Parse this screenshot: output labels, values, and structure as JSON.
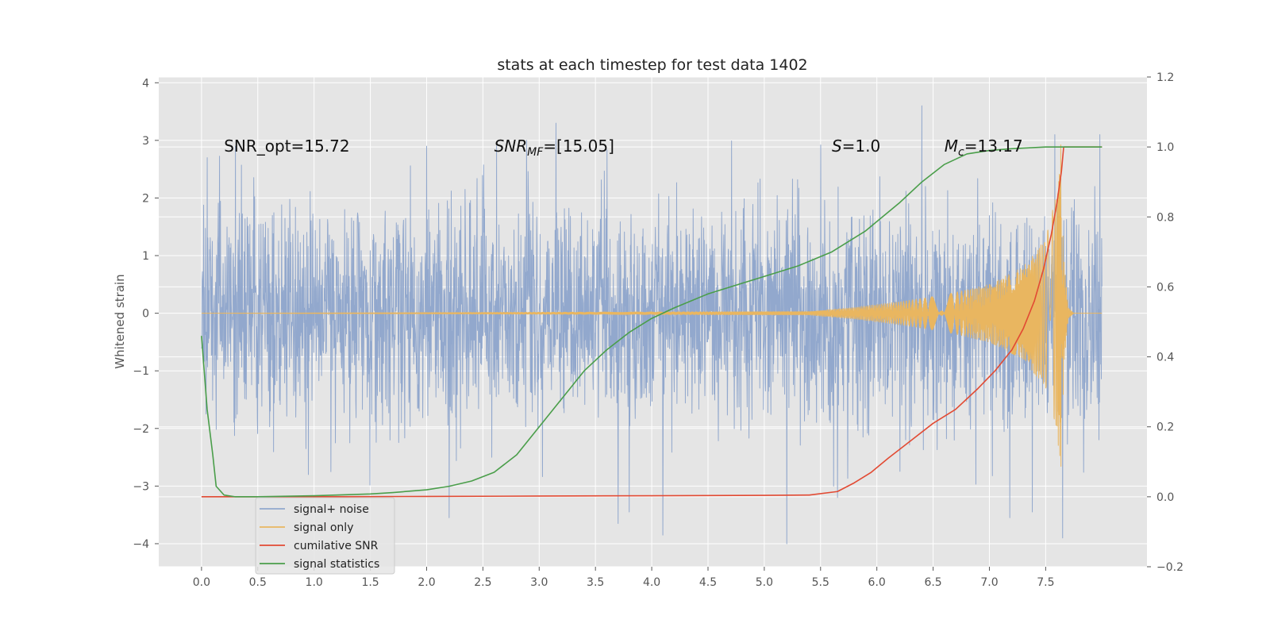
{
  "chart_data": {
    "type": "line",
    "title": "stats at each timestep for test data 1402",
    "ylabel": "Whitened strain",
    "y2label": "",
    "xlabel": "",
    "xlim": [
      -0.38,
      8.4
    ],
    "ylim": [
      -4.4,
      4.1
    ],
    "y2lim": [
      -0.2,
      1.2
    ],
    "xticks": [
      "0.0",
      "0.5",
      "1.0",
      "1.5",
      "2.0",
      "2.5",
      "3.0",
      "3.5",
      "4.0",
      "4.5",
      "5.0",
      "5.5",
      "6.0",
      "6.5",
      "7.0",
      "7.5"
    ],
    "xtick_values": [
      0,
      0.5,
      1,
      1.5,
      2,
      2.5,
      3,
      3.5,
      4,
      4.5,
      5,
      5.5,
      6,
      6.5,
      7,
      7.5
    ],
    "yticks": [
      "−4",
      "−3",
      "−2",
      "−1",
      "0",
      "1",
      "2",
      "3",
      "4"
    ],
    "ytick_values": [
      -4,
      -3,
      -2,
      -1,
      0,
      1,
      2,
      3,
      4
    ],
    "y2ticks": [
      "−0.2",
      "0.0",
      "0.2",
      "0.4",
      "0.6",
      "0.8",
      "1.0",
      "1.2"
    ],
    "y2tick_values": [
      -0.2,
      0,
      0.2,
      0.4,
      0.6,
      0.8,
      1.0,
      1.2
    ],
    "grid": true,
    "legend_position": "lower-left",
    "annotations": [
      {
        "text": "SNR_opt=15.72",
        "x": 0.2,
        "y": 2.9
      },
      {
        "text": "SNR",
        "sub": "MF",
        "rest": "=[15.05]",
        "italic": true,
        "x": 2.6,
        "y": 2.9
      },
      {
        "text": "S",
        "rest": "=1.0",
        "italic": true,
        "x": 5.6,
        "y": 2.9
      },
      {
        "text": "M",
        "sub": "c",
        "rest": "=13.17",
        "italic": true,
        "x": 6.6,
        "y": 2.9
      }
    ],
    "series": [
      {
        "name": "signal+ noise",
        "color": "#92a8cd",
        "axis": "left",
        "kind": "noise",
        "x_range": [
          0,
          8.0
        ],
        "typical_amplitude": 1.0,
        "peak_values": [
          {
            "x": 0.05,
            "y": 2.7
          },
          {
            "x": 0.3,
            "y": 2.9
          },
          {
            "x": 0.95,
            "y": -2.8
          },
          {
            "x": 1.15,
            "y": -2.75
          },
          {
            "x": 2.0,
            "y": 2.9
          },
          {
            "x": 2.2,
            "y": 3.75
          },
          {
            "x": 2.2,
            "y": -3.55
          },
          {
            "x": 3.15,
            "y": 3.3
          },
          {
            "x": 3.7,
            "y": -3.65
          },
          {
            "x": 3.8,
            "y": -3.45
          },
          {
            "x": 4.1,
            "y": -3.85
          },
          {
            "x": 5.2,
            "y": -4.0
          },
          {
            "x": 5.65,
            "y": -3.2
          },
          {
            "x": 6.4,
            "y": 3.6
          },
          {
            "x": 7.18,
            "y": -3.55
          },
          {
            "x": 7.38,
            "y": -3.45
          },
          {
            "x": 7.58,
            "y": 3.1
          },
          {
            "x": 7.65,
            "y": -3.9
          },
          {
            "x": 7.98,
            "y": 3.1
          }
        ]
      },
      {
        "name": "signal only",
        "color": "#e9b660",
        "axis": "left",
        "kind": "chirp",
        "x_range": [
          0,
          8.0
        ],
        "envelope": [
          [
            0,
            0
          ],
          [
            5.4,
            0.03
          ],
          [
            5.8,
            0.1
          ],
          [
            6.2,
            0.2
          ],
          [
            6.6,
            0.32
          ],
          [
            7.0,
            0.5
          ],
          [
            7.3,
            0.8
          ],
          [
            7.5,
            1.3
          ],
          [
            7.6,
            2.1
          ],
          [
            7.64,
            3.1
          ],
          [
            7.66,
            1.0
          ],
          [
            7.7,
            0.1
          ],
          [
            7.75,
            0
          ],
          [
            8.0,
            0
          ]
        ]
      },
      {
        "name": "cumilative SNR",
        "color": "#e24a33",
        "axis": "right",
        "x": [
          0,
          1,
          2,
          3,
          4,
          5,
          5.4,
          5.65,
          5.8,
          5.95,
          6.1,
          6.3,
          6.5,
          6.7,
          6.9,
          7.05,
          7.2,
          7.3,
          7.4,
          7.48,
          7.55,
          7.6,
          7.64,
          7.66,
          8.0
        ],
        "values": [
          0.0,
          0.0,
          0.001,
          0.002,
          0.003,
          0.004,
          0.005,
          0.015,
          0.04,
          0.07,
          0.11,
          0.16,
          0.21,
          0.25,
          0.31,
          0.36,
          0.42,
          0.48,
          0.56,
          0.65,
          0.75,
          0.84,
          0.93,
          1.0,
          1.0
        ]
      },
      {
        "name": "signal statistics",
        "color": "#4a9e4a",
        "axis": "right",
        "x": [
          0,
          0.05,
          0.1,
          0.13,
          0.2,
          0.3,
          0.5,
          1.0,
          1.5,
          1.7,
          2.0,
          2.2,
          2.4,
          2.6,
          2.8,
          3.0,
          3.2,
          3.4,
          3.6,
          3.8,
          4.0,
          4.2,
          4.5,
          4.8,
          5.0,
          5.3,
          5.6,
          5.9,
          6.2,
          6.4,
          6.6,
          6.8,
          7.0,
          7.2,
          7.5,
          8.0
        ],
        "values": [
          0.46,
          0.25,
          0.12,
          0.03,
          0.005,
          0.0,
          0.0,
          0.003,
          0.008,
          0.012,
          0.02,
          0.03,
          0.045,
          0.07,
          0.12,
          0.2,
          0.28,
          0.36,
          0.42,
          0.47,
          0.51,
          0.54,
          0.58,
          0.61,
          0.63,
          0.66,
          0.7,
          0.76,
          0.84,
          0.9,
          0.95,
          0.98,
          0.99,
          0.995,
          1.0,
          1.0
        ]
      }
    ]
  }
}
